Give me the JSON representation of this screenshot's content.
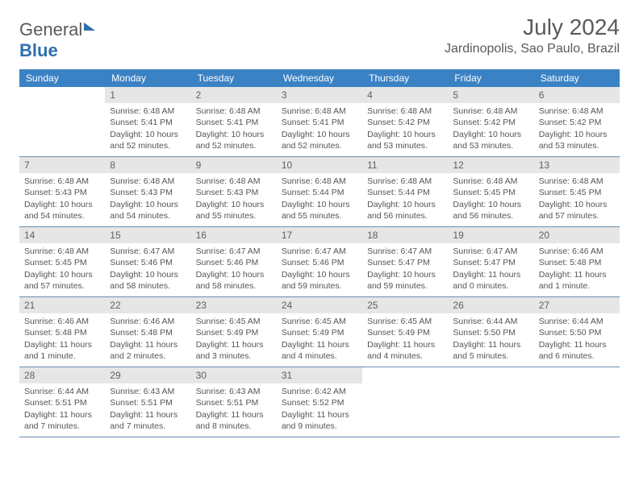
{
  "logo": {
    "part1": "General",
    "part2": "Blue"
  },
  "header": {
    "month": "July 2024",
    "location": "Jardinopolis, Sao Paulo, Brazil"
  },
  "colors": {
    "header_bg": "#3b82c4",
    "header_text": "#ffffff",
    "daynum_bg": "#e6e6e6",
    "text": "#5a5a5a",
    "row_border": "#6a8db0",
    "logo_blue": "#2f6fb0"
  },
  "dow": [
    "Sunday",
    "Monday",
    "Tuesday",
    "Wednesday",
    "Thursday",
    "Friday",
    "Saturday"
  ],
  "weeks": [
    [
      {
        "n": "",
        "sunrise": "",
        "sunset": "",
        "day1": "",
        "day2": ""
      },
      {
        "n": "1",
        "sunrise": "Sunrise: 6:48 AM",
        "sunset": "Sunset: 5:41 PM",
        "day1": "Daylight: 10 hours",
        "day2": "and 52 minutes."
      },
      {
        "n": "2",
        "sunrise": "Sunrise: 6:48 AM",
        "sunset": "Sunset: 5:41 PM",
        "day1": "Daylight: 10 hours",
        "day2": "and 52 minutes."
      },
      {
        "n": "3",
        "sunrise": "Sunrise: 6:48 AM",
        "sunset": "Sunset: 5:41 PM",
        "day1": "Daylight: 10 hours",
        "day2": "and 52 minutes."
      },
      {
        "n": "4",
        "sunrise": "Sunrise: 6:48 AM",
        "sunset": "Sunset: 5:42 PM",
        "day1": "Daylight: 10 hours",
        "day2": "and 53 minutes."
      },
      {
        "n": "5",
        "sunrise": "Sunrise: 6:48 AM",
        "sunset": "Sunset: 5:42 PM",
        "day1": "Daylight: 10 hours",
        "day2": "and 53 minutes."
      },
      {
        "n": "6",
        "sunrise": "Sunrise: 6:48 AM",
        "sunset": "Sunset: 5:42 PM",
        "day1": "Daylight: 10 hours",
        "day2": "and 53 minutes."
      }
    ],
    [
      {
        "n": "7",
        "sunrise": "Sunrise: 6:48 AM",
        "sunset": "Sunset: 5:43 PM",
        "day1": "Daylight: 10 hours",
        "day2": "and 54 minutes."
      },
      {
        "n": "8",
        "sunrise": "Sunrise: 6:48 AM",
        "sunset": "Sunset: 5:43 PM",
        "day1": "Daylight: 10 hours",
        "day2": "and 54 minutes."
      },
      {
        "n": "9",
        "sunrise": "Sunrise: 6:48 AM",
        "sunset": "Sunset: 5:43 PM",
        "day1": "Daylight: 10 hours",
        "day2": "and 55 minutes."
      },
      {
        "n": "10",
        "sunrise": "Sunrise: 6:48 AM",
        "sunset": "Sunset: 5:44 PM",
        "day1": "Daylight: 10 hours",
        "day2": "and 55 minutes."
      },
      {
        "n": "11",
        "sunrise": "Sunrise: 6:48 AM",
        "sunset": "Sunset: 5:44 PM",
        "day1": "Daylight: 10 hours",
        "day2": "and 56 minutes."
      },
      {
        "n": "12",
        "sunrise": "Sunrise: 6:48 AM",
        "sunset": "Sunset: 5:45 PM",
        "day1": "Daylight: 10 hours",
        "day2": "and 56 minutes."
      },
      {
        "n": "13",
        "sunrise": "Sunrise: 6:48 AM",
        "sunset": "Sunset: 5:45 PM",
        "day1": "Daylight: 10 hours",
        "day2": "and 57 minutes."
      }
    ],
    [
      {
        "n": "14",
        "sunrise": "Sunrise: 6:48 AM",
        "sunset": "Sunset: 5:45 PM",
        "day1": "Daylight: 10 hours",
        "day2": "and 57 minutes."
      },
      {
        "n": "15",
        "sunrise": "Sunrise: 6:47 AM",
        "sunset": "Sunset: 5:46 PM",
        "day1": "Daylight: 10 hours",
        "day2": "and 58 minutes."
      },
      {
        "n": "16",
        "sunrise": "Sunrise: 6:47 AM",
        "sunset": "Sunset: 5:46 PM",
        "day1": "Daylight: 10 hours",
        "day2": "and 58 minutes."
      },
      {
        "n": "17",
        "sunrise": "Sunrise: 6:47 AM",
        "sunset": "Sunset: 5:46 PM",
        "day1": "Daylight: 10 hours",
        "day2": "and 59 minutes."
      },
      {
        "n": "18",
        "sunrise": "Sunrise: 6:47 AM",
        "sunset": "Sunset: 5:47 PM",
        "day1": "Daylight: 10 hours",
        "day2": "and 59 minutes."
      },
      {
        "n": "19",
        "sunrise": "Sunrise: 6:47 AM",
        "sunset": "Sunset: 5:47 PM",
        "day1": "Daylight: 11 hours",
        "day2": "and 0 minutes."
      },
      {
        "n": "20",
        "sunrise": "Sunrise: 6:46 AM",
        "sunset": "Sunset: 5:48 PM",
        "day1": "Daylight: 11 hours",
        "day2": "and 1 minute."
      }
    ],
    [
      {
        "n": "21",
        "sunrise": "Sunrise: 6:46 AM",
        "sunset": "Sunset: 5:48 PM",
        "day1": "Daylight: 11 hours",
        "day2": "and 1 minute."
      },
      {
        "n": "22",
        "sunrise": "Sunrise: 6:46 AM",
        "sunset": "Sunset: 5:48 PM",
        "day1": "Daylight: 11 hours",
        "day2": "and 2 minutes."
      },
      {
        "n": "23",
        "sunrise": "Sunrise: 6:45 AM",
        "sunset": "Sunset: 5:49 PM",
        "day1": "Daylight: 11 hours",
        "day2": "and 3 minutes."
      },
      {
        "n": "24",
        "sunrise": "Sunrise: 6:45 AM",
        "sunset": "Sunset: 5:49 PM",
        "day1": "Daylight: 11 hours",
        "day2": "and 4 minutes."
      },
      {
        "n": "25",
        "sunrise": "Sunrise: 6:45 AM",
        "sunset": "Sunset: 5:49 PM",
        "day1": "Daylight: 11 hours",
        "day2": "and 4 minutes."
      },
      {
        "n": "26",
        "sunrise": "Sunrise: 6:44 AM",
        "sunset": "Sunset: 5:50 PM",
        "day1": "Daylight: 11 hours",
        "day2": "and 5 minutes."
      },
      {
        "n": "27",
        "sunrise": "Sunrise: 6:44 AM",
        "sunset": "Sunset: 5:50 PM",
        "day1": "Daylight: 11 hours",
        "day2": "and 6 minutes."
      }
    ],
    [
      {
        "n": "28",
        "sunrise": "Sunrise: 6:44 AM",
        "sunset": "Sunset: 5:51 PM",
        "day1": "Daylight: 11 hours",
        "day2": "and 7 minutes."
      },
      {
        "n": "29",
        "sunrise": "Sunrise: 6:43 AM",
        "sunset": "Sunset: 5:51 PM",
        "day1": "Daylight: 11 hours",
        "day2": "and 7 minutes."
      },
      {
        "n": "30",
        "sunrise": "Sunrise: 6:43 AM",
        "sunset": "Sunset: 5:51 PM",
        "day1": "Daylight: 11 hours",
        "day2": "and 8 minutes."
      },
      {
        "n": "31",
        "sunrise": "Sunrise: 6:42 AM",
        "sunset": "Sunset: 5:52 PM",
        "day1": "Daylight: 11 hours",
        "day2": "and 9 minutes."
      },
      {
        "n": "",
        "sunrise": "",
        "sunset": "",
        "day1": "",
        "day2": ""
      },
      {
        "n": "",
        "sunrise": "",
        "sunset": "",
        "day1": "",
        "day2": ""
      },
      {
        "n": "",
        "sunrise": "",
        "sunset": "",
        "day1": "",
        "day2": ""
      }
    ]
  ]
}
